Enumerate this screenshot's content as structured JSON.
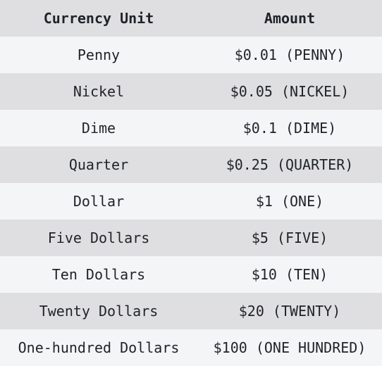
{
  "table": {
    "headers": {
      "unit": "Currency Unit",
      "amount": "Amount"
    },
    "rows": [
      {
        "unit": "Penny",
        "amount": "$0.01 (PENNY)"
      },
      {
        "unit": "Nickel",
        "amount": "$0.05 (NICKEL)"
      },
      {
        "unit": "Dime",
        "amount": "$0.1 (DIME)"
      },
      {
        "unit": "Quarter",
        "amount": "$0.25 (QUARTER)"
      },
      {
        "unit": "Dollar",
        "amount": "$1 (ONE)"
      },
      {
        "unit": "Five Dollars",
        "amount": "$5 (FIVE)"
      },
      {
        "unit": "Ten Dollars",
        "amount": "$10 (TEN)"
      },
      {
        "unit": "Twenty Dollars",
        "amount": "$20 (TWENTY)"
      },
      {
        "unit": "One-hundred Dollars",
        "amount": "$100 (ONE HUNDRED)"
      }
    ]
  },
  "colors": {
    "header_bg": "#dfdfe1",
    "row_light": "#f4f5f7",
    "row_dark": "#dfdfe1",
    "text": "#1f2328"
  }
}
